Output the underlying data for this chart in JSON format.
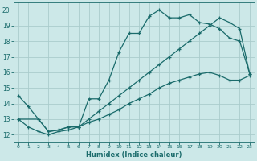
{
  "title": "",
  "xlabel": "Humidex (Indice chaleur)",
  "ylabel": "",
  "bg_color": "#cce8e8",
  "grid_color": "#aacccc",
  "line_color": "#1a6b6b",
  "xlim": [
    -0.5,
    23.5
  ],
  "ylim": [
    11.5,
    20.5
  ],
  "xticks": [
    0,
    1,
    2,
    3,
    4,
    5,
    6,
    7,
    8,
    9,
    10,
    11,
    12,
    13,
    14,
    15,
    16,
    17,
    18,
    19,
    20,
    21,
    22,
    23
  ],
  "yticks": [
    12,
    13,
    14,
    15,
    16,
    17,
    18,
    19,
    20
  ],
  "line1_x": [
    0,
    1,
    2,
    3,
    4,
    5,
    6,
    7,
    8,
    9,
    10,
    11,
    12,
    13,
    14,
    15,
    16,
    17,
    18,
    19,
    20,
    21,
    22,
    23
  ],
  "line1_y": [
    14.5,
    13.8,
    13.0,
    12.2,
    12.3,
    12.5,
    12.5,
    14.3,
    14.3,
    15.5,
    17.3,
    18.5,
    18.5,
    19.6,
    20.0,
    19.5,
    19.5,
    19.7,
    19.2,
    19.1,
    18.8,
    18.2,
    18.0,
    15.9
  ],
  "line2_x": [
    0,
    2,
    3,
    4,
    5,
    6,
    7,
    8,
    9,
    10,
    11,
    12,
    13,
    14,
    15,
    16,
    17,
    18,
    19,
    20,
    21,
    22,
    23
  ],
  "line2_y": [
    13.0,
    13.0,
    12.2,
    12.3,
    12.5,
    12.5,
    13.0,
    13.5,
    14.0,
    14.5,
    15.0,
    15.5,
    16.0,
    16.5,
    17.0,
    17.5,
    18.0,
    18.5,
    19.0,
    19.5,
    19.2,
    18.8,
    15.9
  ],
  "line3_x": [
    0,
    1,
    2,
    3,
    4,
    5,
    6,
    7,
    8,
    9,
    10,
    11,
    12,
    13,
    14,
    15,
    16,
    17,
    18,
    19,
    20,
    21,
    22,
    23
  ],
  "line3_y": [
    13.0,
    12.5,
    12.2,
    12.0,
    12.2,
    12.3,
    12.5,
    12.8,
    13.0,
    13.3,
    13.6,
    14.0,
    14.3,
    14.6,
    15.0,
    15.3,
    15.5,
    15.7,
    15.9,
    16.0,
    15.8,
    15.5,
    15.5,
    15.8
  ]
}
